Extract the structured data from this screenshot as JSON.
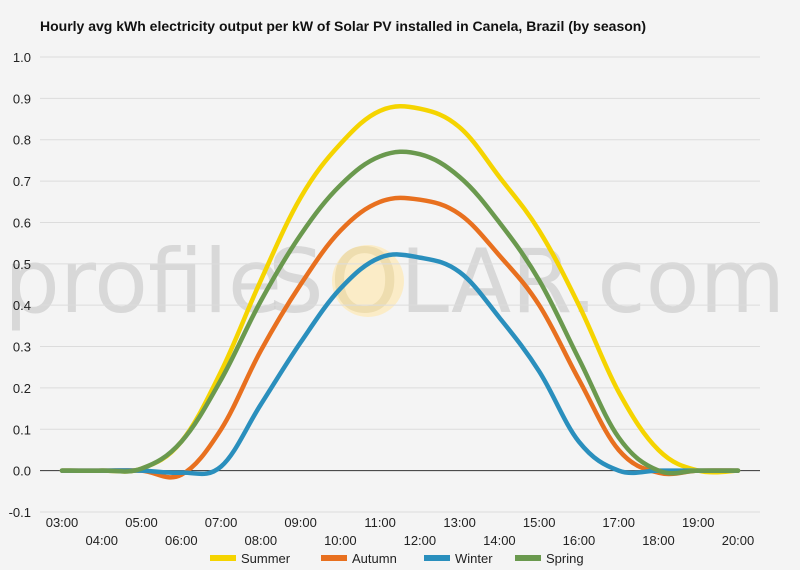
{
  "chart_data": {
    "type": "line",
    "title": "Hourly avg kWh electricity output per kW of Solar PV installed in Canela, Brazil (by season)",
    "xlabel": "",
    "ylabel": "",
    "ylim": [
      -0.1,
      1.0
    ],
    "yticks": [
      "-0.1",
      "0.0",
      "0.1",
      "0.2",
      "0.3",
      "0.4",
      "0.5",
      "0.6",
      "0.7",
      "0.8",
      "0.9",
      "1.0"
    ],
    "categories": [
      "03:00",
      "04:00",
      "05:00",
      "06:00",
      "07:00",
      "08:00",
      "09:00",
      "10:00",
      "11:00",
      "12:00",
      "13:00",
      "14:00",
      "15:00",
      "16:00",
      "17:00",
      "18:00",
      "19:00",
      "20:00"
    ],
    "grid": true,
    "legend_position": "bottom",
    "series": [
      {
        "name": "Summer",
        "color": "#f5d400",
        "values": [
          0.0,
          0.0,
          0.005,
          0.07,
          0.24,
          0.46,
          0.66,
          0.79,
          0.87,
          0.875,
          0.83,
          0.71,
          0.58,
          0.4,
          0.19,
          0.05,
          0.0,
          0.0
        ]
      },
      {
        "name": "Autumn",
        "color": "#e8701f",
        "values": [
          0.0,
          0.0,
          0.0,
          -0.01,
          0.1,
          0.29,
          0.45,
          0.58,
          0.65,
          0.655,
          0.62,
          0.52,
          0.4,
          0.22,
          0.05,
          -0.005,
          0.0,
          0.0
        ]
      },
      {
        "name": "Winter",
        "color": "#2a8fbd",
        "values": [
          0.0,
          0.0,
          0.0,
          -0.005,
          0.01,
          0.16,
          0.31,
          0.44,
          0.515,
          0.515,
          0.48,
          0.37,
          0.24,
          0.07,
          0.0,
          0.0,
          0.0,
          0.0
        ]
      },
      {
        "name": "Spring",
        "color": "#6a994e",
        "values": [
          0.0,
          0.0,
          0.005,
          0.07,
          0.22,
          0.41,
          0.57,
          0.69,
          0.76,
          0.765,
          0.71,
          0.6,
          0.46,
          0.27,
          0.08,
          0.0,
          0.0,
          0.0
        ]
      }
    ]
  },
  "watermark": {
    "text_left": "profile",
    "text_mid": "S",
    "text_o": "O",
    "text_right": "LAR.com"
  }
}
